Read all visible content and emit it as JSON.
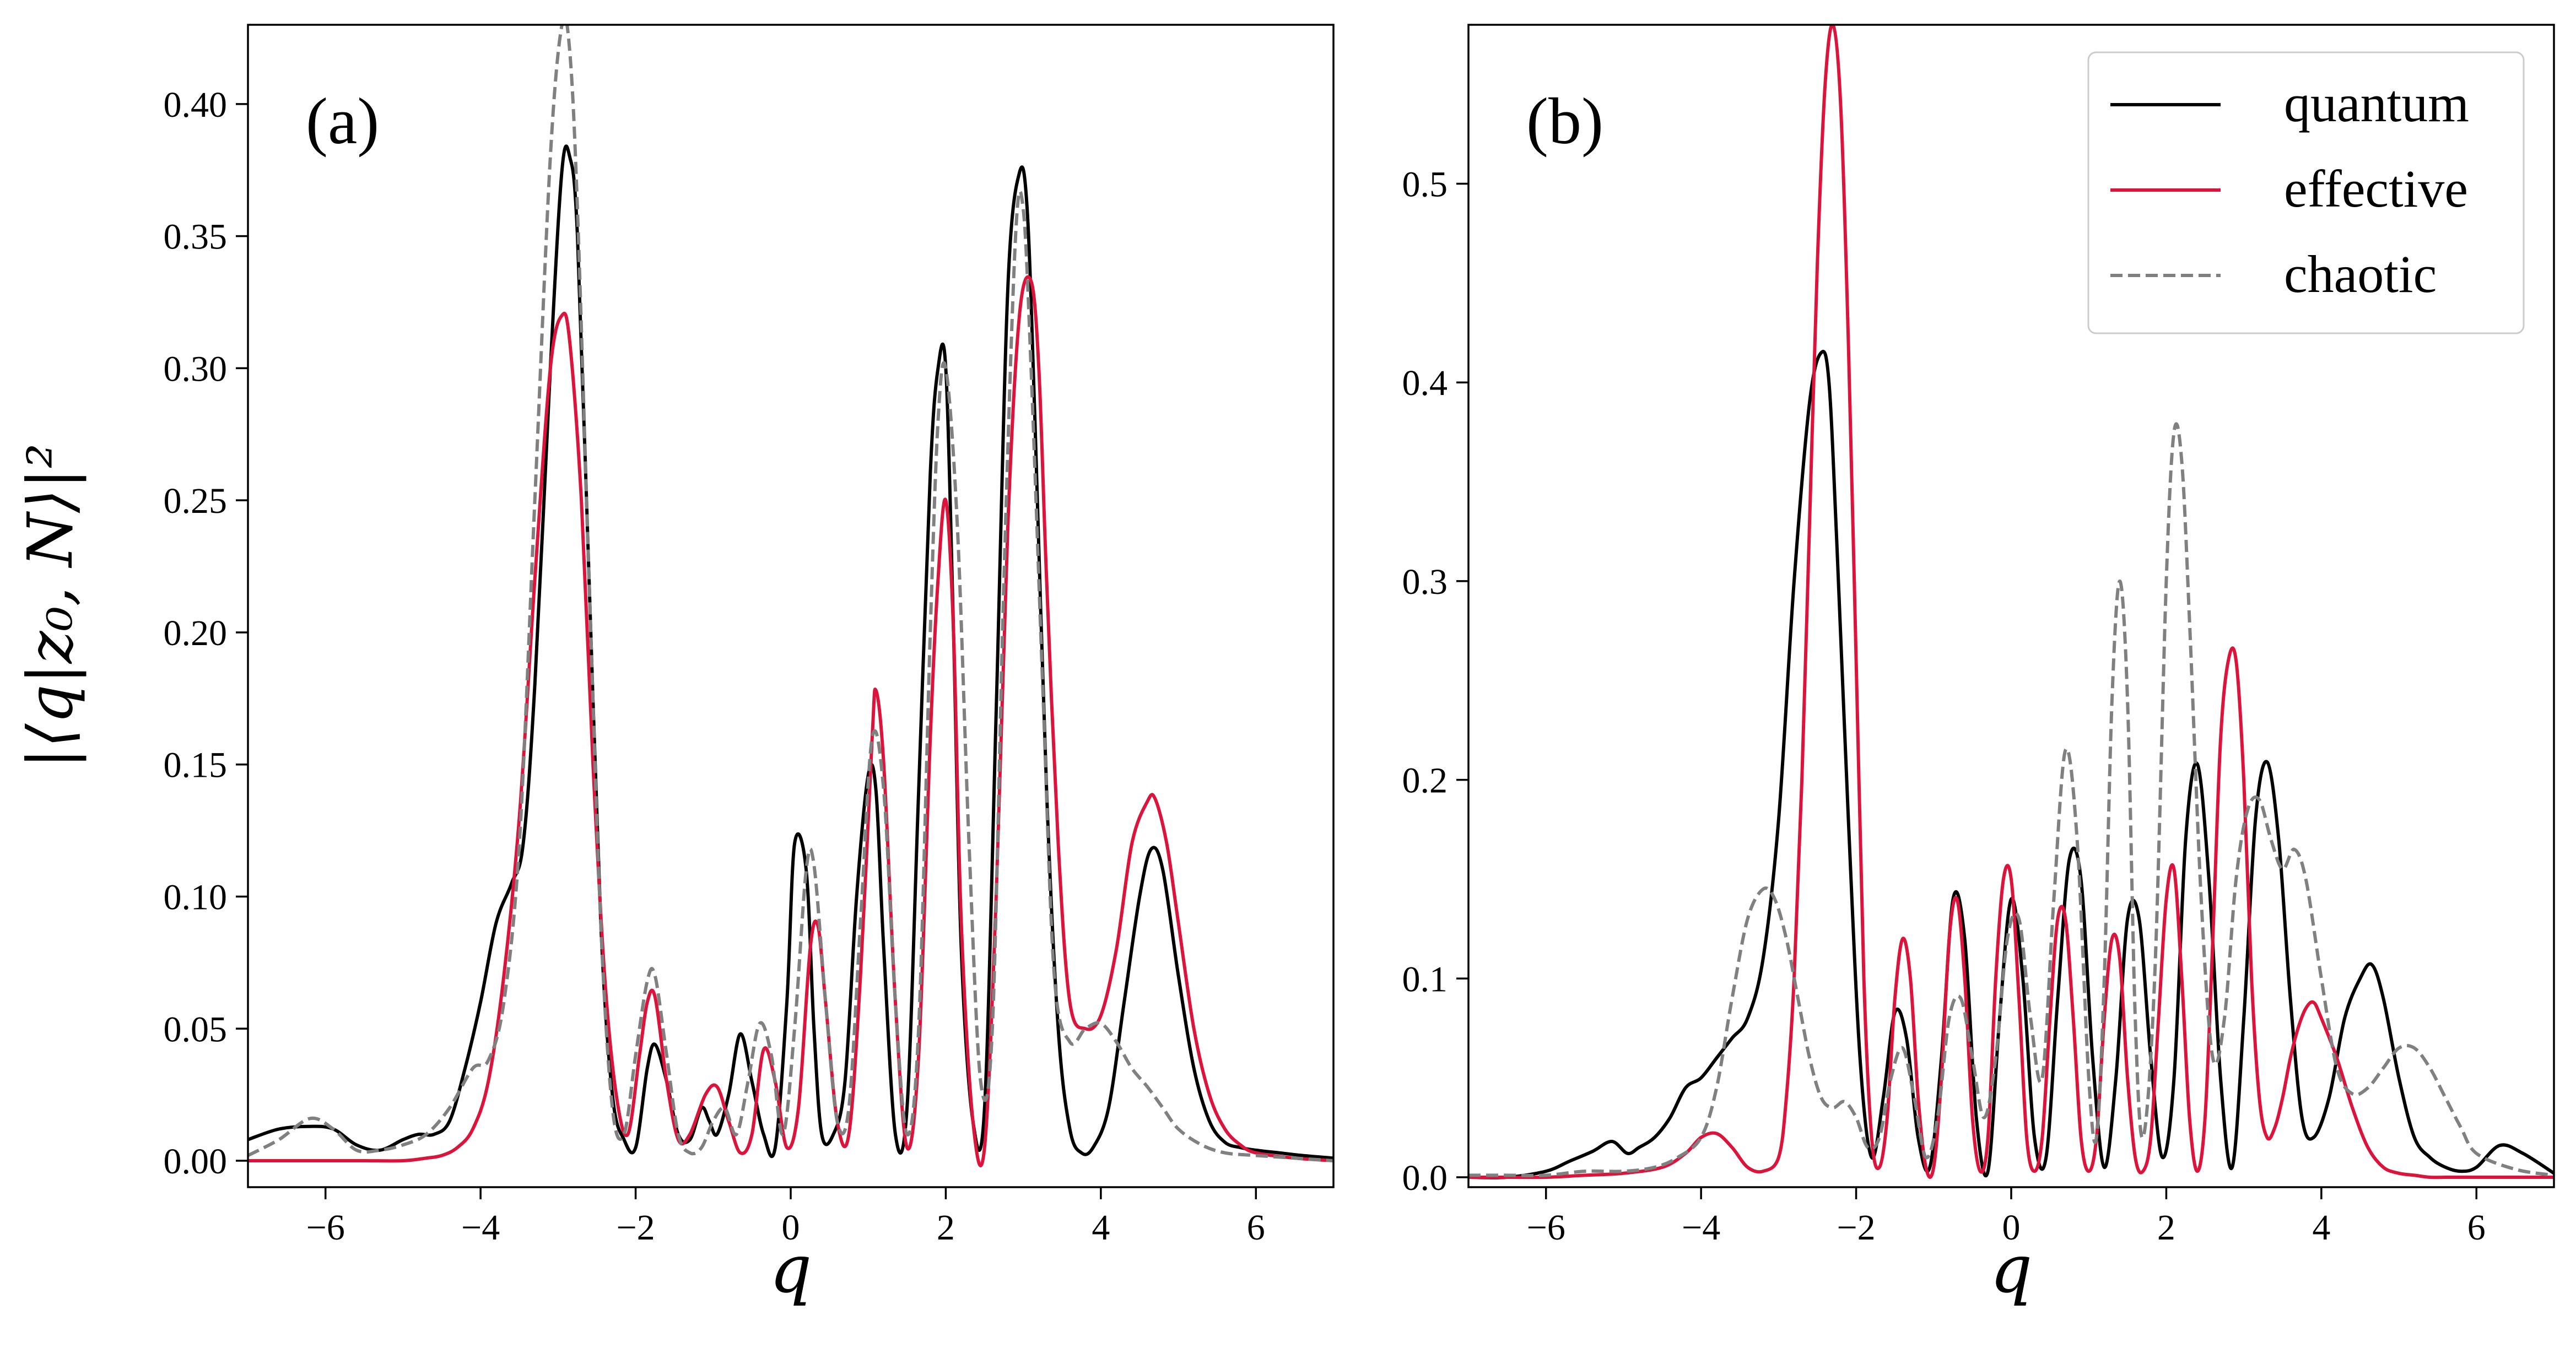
{
  "chart_data": [
    {
      "type": "line",
      "panel_label": "(a)",
      "xlabel": "q",
      "ylabel": "|⟨q|z₀, N⟩|²",
      "xlim": [
        -7,
        7
      ],
      "ylim": [
        -0.01,
        0.43
      ],
      "xticks": [
        -6,
        -4,
        -2,
        0,
        2,
        4,
        6
      ],
      "yticks": [
        0.0,
        0.05,
        0.1,
        0.15,
        0.2,
        0.25,
        0.3,
        0.35,
        0.4
      ],
      "ytick_labels": [
        "0.00",
        "0.05",
        "0.10",
        "0.15",
        "0.20",
        "0.25",
        "0.30",
        "0.35",
        "0.40"
      ],
      "legend": null,
      "grid": false,
      "series": [
        {
          "name": "quantum",
          "color": "#000000",
          "dash": "solid",
          "x": [
            -7.0,
            -6.6,
            -6.2,
            -5.9,
            -5.6,
            -5.3,
            -5.0,
            -4.8,
            -4.6,
            -4.4,
            -4.2,
            -4.0,
            -3.8,
            -3.6,
            -3.45,
            -3.3,
            -3.1,
            -2.95,
            -2.85,
            -2.75,
            -2.6,
            -2.45,
            -2.3,
            -2.15,
            -2.0,
            -1.85,
            -1.75,
            -1.6,
            -1.45,
            -1.3,
            -1.15,
            -1.05,
            -0.95,
            -0.8,
            -0.65,
            -0.5,
            -0.35,
            -0.2,
            -0.05,
            0.05,
            0.2,
            0.3,
            0.4,
            0.55,
            0.7,
            0.85,
            1.0,
            1.1,
            1.2,
            1.35,
            1.5,
            1.65,
            1.8,
            1.9,
            2.0,
            2.1,
            2.2,
            2.35,
            2.5,
            2.65,
            2.8,
            2.95,
            3.05,
            3.15,
            3.3,
            3.45,
            3.6,
            3.75,
            3.9,
            4.1,
            4.3,
            4.5,
            4.65,
            4.8,
            5.0,
            5.2,
            5.4,
            5.6,
            5.8,
            6.0,
            6.3,
            6.6,
            7.0
          ],
          "y": [
            0.008,
            0.012,
            0.013,
            0.012,
            0.006,
            0.004,
            0.008,
            0.01,
            0.01,
            0.015,
            0.035,
            0.06,
            0.09,
            0.105,
            0.12,
            0.18,
            0.3,
            0.375,
            0.38,
            0.35,
            0.22,
            0.09,
            0.025,
            0.008,
            0.005,
            0.035,
            0.044,
            0.03,
            0.01,
            0.008,
            0.02,
            0.015,
            0.01,
            0.025,
            0.048,
            0.03,
            0.01,
            0.005,
            0.06,
            0.12,
            0.11,
            0.05,
            0.01,
            0.01,
            0.03,
            0.1,
            0.146,
            0.14,
            0.08,
            0.01,
            0.02,
            0.14,
            0.26,
            0.3,
            0.3,
            0.2,
            0.08,
            0.015,
            0.02,
            0.17,
            0.33,
            0.374,
            0.36,
            0.28,
            0.14,
            0.05,
            0.012,
            0.003,
            0.005,
            0.02,
            0.06,
            0.1,
            0.118,
            0.11,
            0.07,
            0.035,
            0.015,
            0.007,
            0.005,
            0.004,
            0.003,
            0.002,
            0.001
          ]
        },
        {
          "name": "effective",
          "color": "#dc143c",
          "dash": "solid",
          "x": [
            -7.0,
            -6.5,
            -6.0,
            -5.5,
            -5.0,
            -4.7,
            -4.5,
            -4.3,
            -4.1,
            -3.9,
            -3.7,
            -3.5,
            -3.3,
            -3.1,
            -2.95,
            -2.85,
            -2.7,
            -2.55,
            -2.4,
            -2.25,
            -2.1,
            -1.95,
            -1.85,
            -1.75,
            -1.6,
            -1.45,
            -1.3,
            -1.1,
            -0.95,
            -0.8,
            -0.65,
            -0.5,
            -0.35,
            -0.2,
            -0.05,
            0.1,
            0.25,
            0.35,
            0.45,
            0.6,
            0.75,
            0.9,
            1.05,
            1.1,
            1.2,
            1.35,
            1.5,
            1.65,
            1.8,
            1.9,
            2.0,
            2.1,
            2.2,
            2.35,
            2.5,
            2.65,
            2.8,
            2.95,
            3.1,
            3.2,
            3.3,
            3.45,
            3.6,
            3.8,
            4.0,
            4.2,
            4.4,
            4.6,
            4.7,
            4.85,
            5.0,
            5.2,
            5.4,
            5.6,
            5.8,
            6.0,
            6.5,
            7.0
          ],
          "y": [
            0.0,
            0.0,
            0.0,
            0.0,
            0.0,
            0.001,
            0.002,
            0.005,
            0.012,
            0.03,
            0.07,
            0.13,
            0.22,
            0.3,
            0.32,
            0.31,
            0.25,
            0.15,
            0.07,
            0.025,
            0.01,
            0.04,
            0.06,
            0.062,
            0.03,
            0.008,
            0.01,
            0.025,
            0.028,
            0.015,
            0.003,
            0.01,
            0.042,
            0.03,
            0.005,
            0.02,
            0.08,
            0.089,
            0.06,
            0.015,
            0.01,
            0.07,
            0.16,
            0.178,
            0.15,
            0.06,
            0.005,
            0.04,
            0.16,
            0.22,
            0.25,
            0.2,
            0.09,
            0.015,
            0.005,
            0.1,
            0.24,
            0.32,
            0.333,
            0.3,
            0.22,
            0.12,
            0.06,
            0.05,
            0.055,
            0.08,
            0.12,
            0.136,
            0.137,
            0.12,
            0.09,
            0.05,
            0.025,
            0.012,
            0.006,
            0.003,
            0.001,
            0.0
          ]
        },
        {
          "name": "chaotic",
          "color": "#808080",
          "dash": "dashed",
          "x": [
            -7.0,
            -6.6,
            -6.2,
            -5.9,
            -5.6,
            -5.3,
            -5.0,
            -4.7,
            -4.4,
            -4.1,
            -3.9,
            -3.7,
            -3.5,
            -3.3,
            -3.1,
            -2.95,
            -2.85,
            -2.75,
            -2.6,
            -2.45,
            -2.3,
            -2.15,
            -2.0,
            -1.85,
            -1.75,
            -1.6,
            -1.45,
            -1.3,
            -1.15,
            -1.0,
            -0.85,
            -0.7,
            -0.55,
            -0.4,
            -0.25,
            -0.1,
            0.05,
            0.2,
            0.3,
            0.45,
            0.6,
            0.75,
            0.9,
            1.05,
            1.2,
            1.35,
            1.5,
            1.65,
            1.8,
            1.9,
            2.0,
            2.15,
            2.3,
            2.45,
            2.6,
            2.75,
            2.9,
            3.0,
            3.1,
            3.25,
            3.4,
            3.6,
            3.8,
            4.0,
            4.2,
            4.4,
            4.6,
            4.8,
            5.0,
            5.3,
            5.6,
            6.0,
            6.5,
            7.0
          ],
          "y": [
            0.002,
            0.008,
            0.016,
            0.012,
            0.004,
            0.004,
            0.006,
            0.01,
            0.02,
            0.035,
            0.038,
            0.06,
            0.12,
            0.25,
            0.38,
            0.43,
            0.42,
            0.36,
            0.22,
            0.09,
            0.02,
            0.01,
            0.04,
            0.068,
            0.07,
            0.04,
            0.01,
            0.003,
            0.005,
            0.015,
            0.02,
            0.01,
            0.03,
            0.052,
            0.04,
            0.01,
            0.05,
            0.11,
            0.112,
            0.06,
            0.015,
            0.02,
            0.09,
            0.16,
            0.14,
            0.06,
            0.01,
            0.05,
            0.2,
            0.28,
            0.3,
            0.24,
            0.12,
            0.03,
            0.05,
            0.22,
            0.35,
            0.36,
            0.3,
            0.18,
            0.07,
            0.045,
            0.05,
            0.052,
            0.045,
            0.035,
            0.028,
            0.02,
            0.012,
            0.006,
            0.003,
            0.002,
            0.001,
            0.0
          ]
        }
      ]
    },
    {
      "type": "line",
      "panel_label": "(b)",
      "xlabel": "q",
      "ylabel": "",
      "xlim": [
        -7,
        7
      ],
      "ylim": [
        -0.005,
        0.58
      ],
      "xticks": [
        -6,
        -4,
        -2,
        0,
        2,
        4,
        6
      ],
      "yticks": [
        0.0,
        0.1,
        0.2,
        0.3,
        0.4,
        0.5
      ],
      "ytick_labels": [
        "0.0",
        "0.1",
        "0.2",
        "0.3",
        "0.4",
        "0.5"
      ],
      "legend": "top-right",
      "grid": false,
      "series": [
        {
          "name": "quantum",
          "color": "#000000",
          "dash": "solid",
          "x": [
            -7.0,
            -6.5,
            -6.0,
            -5.7,
            -5.4,
            -5.15,
            -4.95,
            -4.8,
            -4.6,
            -4.4,
            -4.2,
            -4.0,
            -3.8,
            -3.6,
            -3.4,
            -3.2,
            -3.0,
            -2.8,
            -2.6,
            -2.45,
            -2.35,
            -2.25,
            -2.1,
            -1.95,
            -1.8,
            -1.65,
            -1.5,
            -1.35,
            -1.2,
            -1.05,
            -0.9,
            -0.75,
            -0.6,
            -0.45,
            -0.3,
            -0.15,
            0.0,
            0.15,
            0.3,
            0.45,
            0.6,
            0.75,
            0.9,
            1.05,
            1.2,
            1.35,
            1.5,
            1.65,
            1.8,
            1.95,
            2.1,
            2.25,
            2.4,
            2.55,
            2.7,
            2.85,
            3.0,
            3.15,
            3.3,
            3.45,
            3.6,
            3.75,
            3.9,
            4.1,
            4.3,
            4.5,
            4.65,
            4.8,
            5.0,
            5.2,
            5.4,
            5.6,
            5.8,
            6.0,
            6.3,
            6.6,
            7.0
          ],
          "y": [
            0.0,
            0.0,
            0.003,
            0.008,
            0.013,
            0.018,
            0.012,
            0.015,
            0.02,
            0.03,
            0.045,
            0.05,
            0.06,
            0.07,
            0.08,
            0.11,
            0.18,
            0.3,
            0.39,
            0.415,
            0.4,
            0.32,
            0.18,
            0.06,
            0.01,
            0.04,
            0.083,
            0.07,
            0.02,
            0.005,
            0.06,
            0.14,
            0.12,
            0.03,
            0.003,
            0.08,
            0.14,
            0.1,
            0.02,
            0.01,
            0.09,
            0.16,
            0.15,
            0.06,
            0.005,
            0.05,
            0.13,
            0.13,
            0.06,
            0.01,
            0.05,
            0.17,
            0.208,
            0.15,
            0.05,
            0.005,
            0.08,
            0.18,
            0.209,
            0.17,
            0.09,
            0.03,
            0.02,
            0.04,
            0.08,
            0.1,
            0.107,
            0.09,
            0.05,
            0.02,
            0.01,
            0.005,
            0.003,
            0.005,
            0.016,
            0.012,
            0.002
          ]
        },
        {
          "name": "effective",
          "color": "#dc143c",
          "dash": "solid",
          "x": [
            -7.0,
            -6.5,
            -6.0,
            -5.5,
            -5.0,
            -4.5,
            -4.2,
            -4.0,
            -3.8,
            -3.6,
            -3.4,
            -3.2,
            -3.0,
            -2.9,
            -2.8,
            -2.7,
            -2.6,
            -2.5,
            -2.4,
            -2.3,
            -2.2,
            -2.1,
            -2.0,
            -1.9,
            -1.8,
            -1.7,
            -1.6,
            -1.5,
            -1.4,
            -1.3,
            -1.2,
            -1.1,
            -1.0,
            -0.9,
            -0.8,
            -0.7,
            -0.6,
            -0.5,
            -0.4,
            -0.3,
            -0.2,
            -0.1,
            0.0,
            0.1,
            0.2,
            0.3,
            0.4,
            0.5,
            0.6,
            0.7,
            0.8,
            0.9,
            1.0,
            1.1,
            1.2,
            1.3,
            1.4,
            1.5,
            1.6,
            1.7,
            1.8,
            1.9,
            2.0,
            2.1,
            2.2,
            2.3,
            2.4,
            2.5,
            2.6,
            2.7,
            2.8,
            2.9,
            3.0,
            3.1,
            3.2,
            3.3,
            3.4,
            3.5,
            3.6,
            3.7,
            3.8,
            3.9,
            4.0,
            4.2,
            4.4,
            4.6,
            4.8,
            5.0,
            5.2,
            5.4,
            5.6,
            5.8,
            6.0,
            6.5,
            7.0
          ],
          "y": [
            0.0,
            0.0,
            0.0,
            0.001,
            0.002,
            0.005,
            0.012,
            0.02,
            0.022,
            0.015,
            0.005,
            0.003,
            0.01,
            0.04,
            0.1,
            0.2,
            0.33,
            0.46,
            0.55,
            0.58,
            0.54,
            0.42,
            0.26,
            0.1,
            0.02,
            0.005,
            0.03,
            0.09,
            0.12,
            0.1,
            0.04,
            0.005,
            0.005,
            0.05,
            0.12,
            0.14,
            0.1,
            0.03,
            0.003,
            0.02,
            0.1,
            0.15,
            0.15,
            0.09,
            0.02,
            0.003,
            0.02,
            0.08,
            0.13,
            0.13,
            0.08,
            0.02,
            0.003,
            0.02,
            0.08,
            0.12,
            0.11,
            0.05,
            0.01,
            0.003,
            0.02,
            0.08,
            0.14,
            0.155,
            0.1,
            0.03,
            0.003,
            0.03,
            0.12,
            0.22,
            0.26,
            0.26,
            0.2,
            0.1,
            0.04,
            0.02,
            0.025,
            0.04,
            0.06,
            0.075,
            0.085,
            0.088,
            0.08,
            0.06,
            0.035,
            0.015,
            0.005,
            0.002,
            0.001,
            0.0,
            0.0,
            0.0,
            0.0,
            0.0,
            0.0
          ]
        },
        {
          "name": "chaotic",
          "color": "#808080",
          "dash": "dashed",
          "x": [
            -7.0,
            -6.5,
            -6.0,
            -5.5,
            -5.0,
            -4.6,
            -4.3,
            -4.0,
            -3.8,
            -3.6,
            -3.4,
            -3.2,
            -3.05,
            -2.9,
            -2.75,
            -2.6,
            -2.45,
            -2.3,
            -2.15,
            -2.0,
            -1.85,
            -1.7,
            -1.55,
            -1.4,
            -1.25,
            -1.1,
            -0.95,
            -0.8,
            -0.65,
            -0.5,
            -0.35,
            -0.2,
            -0.05,
            0.1,
            0.25,
            0.4,
            0.55,
            0.7,
            0.85,
            1.0,
            1.1,
            1.2,
            1.3,
            1.4,
            1.5,
            1.6,
            1.7,
            1.85,
            2.0,
            2.1,
            2.2,
            2.3,
            2.45,
            2.6,
            2.75,
            2.9,
            3.05,
            3.2,
            3.35,
            3.5,
            3.65,
            3.8,
            4.0,
            4.2,
            4.4,
            4.6,
            4.8,
            5.0,
            5.2,
            5.4,
            5.6,
            5.8,
            6.0,
            6.5,
            7.0
          ],
          "y": [
            0.001,
            0.001,
            0.001,
            0.003,
            0.003,
            0.005,
            0.01,
            0.02,
            0.045,
            0.09,
            0.13,
            0.145,
            0.14,
            0.12,
            0.09,
            0.06,
            0.04,
            0.035,
            0.038,
            0.03,
            0.015,
            0.02,
            0.05,
            0.065,
            0.04,
            0.01,
            0.03,
            0.08,
            0.09,
            0.06,
            0.03,
            0.06,
            0.12,
            0.13,
            0.08,
            0.05,
            0.14,
            0.215,
            0.17,
            0.05,
            0.02,
            0.1,
            0.24,
            0.3,
            0.24,
            0.08,
            0.02,
            0.1,
            0.3,
            0.375,
            0.36,
            0.28,
            0.14,
            0.06,
            0.08,
            0.15,
            0.185,
            0.19,
            0.17,
            0.155,
            0.165,
            0.15,
            0.1,
            0.055,
            0.042,
            0.045,
            0.055,
            0.065,
            0.065,
            0.055,
            0.04,
            0.025,
            0.012,
            0.004,
            0.001
          ]
        }
      ]
    }
  ]
}
